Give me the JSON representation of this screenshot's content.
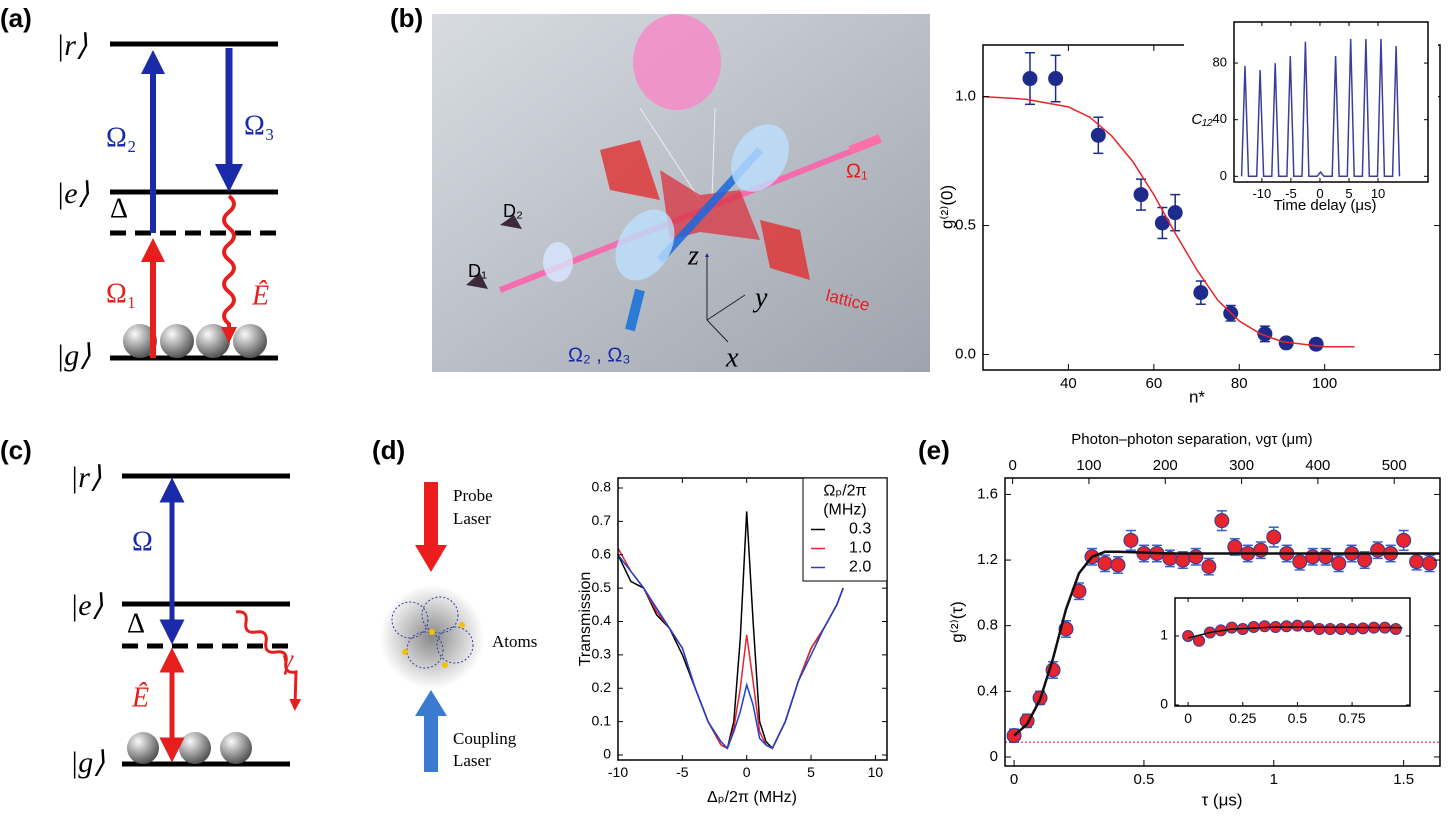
{
  "panels": [
    "(a)",
    "(b)",
    "(c)",
    "(d)",
    "(e)"
  ],
  "diagram_a": {
    "levels": [
      "|r⟩",
      "|e⟩",
      "|g⟩"
    ],
    "detuning": "Δ",
    "fields": [
      "Ω₂",
      "Ω₃",
      "Ω₁",
      "Ê"
    ]
  },
  "illustration_b": {
    "labels": [
      "D₂",
      "D₁",
      "z",
      "y",
      "x",
      "Ω₁",
      "lattice",
      "Ω₂ , Ω₃"
    ]
  },
  "diagram_c": {
    "levels": [
      "|r⟩",
      "|e⟩",
      "|g⟩"
    ],
    "detuning": "Δ",
    "fields": [
      "Ω",
      "Ê",
      "γ"
    ]
  },
  "diagram_d": {
    "probe": [
      "Probe",
      "Laser"
    ],
    "sample": "Atoms",
    "coupling": [
      "Coupling",
      "Laser"
    ]
  },
  "chart_data": [
    {
      "type": "scatter",
      "xlabel": "n*",
      "ylabel": "g⁽²⁾(0)",
      "xlim": [
        20,
        127
      ],
      "ylim": [
        -0.06,
        1.2
      ],
      "xticks": [
        40,
        60,
        80,
        100
      ],
      "yticks": [
        {
          "value": 0,
          "label": "0.0"
        },
        0.5,
        {
          "value": 1,
          "label": "1.0"
        }
      ],
      "series": [
        {
          "mode": "marker",
          "color": "#1f2b8c",
          "x": [
            31,
            37,
            47,
            57,
            62,
            65,
            71,
            78,
            86,
            91,
            98
          ],
          "values": [
            1.07,
            1.07,
            0.85,
            0.62,
            0.51,
            0.55,
            0.24,
            0.16,
            0.08,
            0.045,
            0.04
          ],
          "errors": [
            0.1,
            0.09,
            0.07,
            0.06,
            0.06,
            0.07,
            0.045,
            0.03,
            0.03,
            0.02,
            0.02
          ]
        },
        {
          "mode": "line",
          "color": "#e8242c",
          "x": [
            20,
            30,
            40,
            45,
            50,
            55,
            60,
            65,
            70,
            75,
            80,
            85,
            90,
            95,
            100,
            107
          ],
          "values": [
            1.0,
            0.99,
            0.96,
            0.92,
            0.85,
            0.75,
            0.62,
            0.47,
            0.33,
            0.21,
            0.13,
            0.08,
            0.05,
            0.04,
            0.03,
            0.03
          ]
        }
      ]
    },
    {
      "type": "line",
      "xlabel": "Time delay (μs)",
      "ylabel": "C₁₂",
      "xlim": [
        -14.8,
        18.6
      ],
      "ylim": [
        -4,
        109
      ],
      "xticks": [
        -10,
        -5,
        0,
        5,
        10
      ],
      "yticks": [
        0,
        40,
        80
      ],
      "series": [
        {
          "mode": "line",
          "color": "#3b3f9a",
          "x": [
            -13.5,
            -12.9,
            -12.3,
            -10.9,
            -10.3,
            -9.7,
            -8.3,
            -7.7,
            -7.1,
            -5.7,
            -5.1,
            -4.5,
            -3.1,
            -2.5,
            -1.9,
            -0.5,
            0.1,
            0.7,
            2.1,
            2.7,
            3.3,
            4.7,
            5.3,
            5.9,
            7.3,
            7.9,
            8.5,
            9.9,
            10.5,
            11.1,
            12.5,
            13.1,
            13.7
          ],
          "values": [
            0,
            78,
            0,
            0,
            75,
            0,
            0,
            80,
            0,
            0,
            85,
            0,
            0,
            95,
            0,
            0,
            3,
            0,
            0,
            85,
            0,
            0,
            97,
            0,
            0,
            97,
            0,
            0,
            97,
            0,
            0,
            92,
            0
          ]
        }
      ]
    },
    {
      "type": "line",
      "xlabel": "Δₚ/2π (MHz)",
      "ylabel": "Transmission",
      "xlim": [
        -10,
        10.9
      ],
      "ylim": [
        -0.015,
        0.83
      ],
      "xticks": [
        -10,
        -5,
        0,
        5,
        10
      ],
      "yticks": [
        0,
        0.1,
        0.2,
        0.3,
        0.4,
        0.5,
        0.6,
        0.7,
        0.8
      ],
      "legend": "upper right",
      "legend_title": [
        "Ωₚ/2π",
        "(MHz)"
      ],
      "series": [
        {
          "name": "0.3",
          "mode": "line",
          "color": "#000000",
          "x": [
            -10,
            -9,
            -8,
            -7,
            -6,
            -5,
            -4,
            -3,
            -2,
            -1.5,
            -1,
            -0.5,
            0,
            0.5,
            1,
            1.5,
            2,
            3,
            4,
            5,
            6,
            7,
            7.5
          ],
          "values": [
            0.6,
            0.52,
            0.5,
            0.42,
            0.38,
            0.3,
            0.2,
            0.1,
            0.03,
            0.02,
            0.1,
            0.35,
            0.73,
            0.4,
            0.1,
            0.04,
            0.02,
            0.1,
            0.22,
            0.32,
            0.38,
            0.45,
            0.5
          ]
        },
        {
          "name": "1.0",
          "mode": "line",
          "color": "#e8242c",
          "x": [
            -10,
            -9,
            -8,
            -7,
            -6,
            -5,
            -4,
            -3,
            -2,
            -1.5,
            -1,
            -0.5,
            0,
            0.5,
            1,
            1.5,
            2,
            3,
            4,
            5,
            6,
            7,
            7.5
          ],
          "values": [
            0.62,
            0.55,
            0.5,
            0.43,
            0.38,
            0.32,
            0.2,
            0.1,
            0.03,
            0.02,
            0.08,
            0.2,
            0.36,
            0.22,
            0.07,
            0.03,
            0.02,
            0.1,
            0.22,
            0.32,
            0.38,
            0.45,
            0.5
          ]
        },
        {
          "name": "2.0",
          "mode": "line",
          "color": "#1f3fd0",
          "x": [
            -10,
            -9,
            -8,
            -7,
            -6,
            -5,
            -4,
            -3,
            -2,
            -1.5,
            -1,
            -0.5,
            0,
            0.5,
            1,
            1.5,
            2,
            3,
            4,
            5,
            6,
            7,
            7.5
          ],
          "values": [
            0.6,
            0.55,
            0.5,
            0.44,
            0.38,
            0.32,
            0.2,
            0.1,
            0.04,
            0.02,
            0.07,
            0.13,
            0.21,
            0.15,
            0.05,
            0.03,
            0.02,
            0.1,
            0.22,
            0.3,
            0.38,
            0.45,
            0.5
          ]
        }
      ]
    },
    {
      "type": "scatter",
      "xlabel": "τ (μs)",
      "ylabel": "g⁽²⁾(τ)",
      "x2label": "Photon–photon separation, νgτ (μm)",
      "xlim": [
        -0.035,
        1.64
      ],
      "ylim": [
        -0.055,
        1.7
      ],
      "xticks": [
        0,
        0.5,
        1,
        1.5
      ],
      "yticks": [
        0,
        0.4,
        0.8,
        1.2,
        1.6
      ],
      "x2lim": [
        -10,
        560
      ],
      "x2ticks": [
        0,
        100,
        200,
        300,
        400,
        500
      ],
      "reference_line": 0.09,
      "reference_color": "#e8242c",
      "series": [
        {
          "mode": "marker",
          "color": "#e8242c",
          "edge_color": "#2b3d9c",
          "error_color": "#3a5fc8",
          "x": [
            0,
            0.05,
            0.1,
            0.15,
            0.2,
            0.25,
            0.3,
            0.35,
            0.4,
            0.45,
            0.5,
            0.55,
            0.6,
            0.65,
            0.7,
            0.75,
            0.8,
            0.85,
            0.9,
            0.95,
            1.0,
            1.05,
            1.1,
            1.15,
            1.2,
            1.25,
            1.3,
            1.35,
            1.4,
            1.45,
            1.5,
            1.55,
            1.6
          ],
          "values": [
            0.13,
            0.22,
            0.36,
            0.53,
            0.78,
            1.01,
            1.22,
            1.18,
            1.17,
            1.32,
            1.24,
            1.24,
            1.21,
            1.2,
            1.22,
            1.16,
            1.44,
            1.28,
            1.24,
            1.26,
            1.34,
            1.24,
            1.19,
            1.22,
            1.22,
            1.18,
            1.24,
            1.2,
            1.26,
            1.24,
            1.32,
            1.19,
            1.18
          ],
          "errors": [
            0.04,
            0.04,
            0.04,
            0.05,
            0.05,
            0.05,
            0.05,
            0.05,
            0.05,
            0.06,
            0.05,
            0.05,
            0.05,
            0.05,
            0.05,
            0.05,
            0.06,
            0.05,
            0.05,
            0.05,
            0.06,
            0.05,
            0.05,
            0.05,
            0.05,
            0.05,
            0.05,
            0.05,
            0.05,
            0.05,
            0.06,
            0.05,
            0.05
          ]
        },
        {
          "mode": "line",
          "color": "#111111",
          "x": [
            0,
            0.05,
            0.1,
            0.15,
            0.2,
            0.25,
            0.3,
            0.35,
            0.4,
            0.6,
            1.0,
            1.64
          ],
          "values": [
            0.13,
            0.2,
            0.35,
            0.6,
            0.9,
            1.12,
            1.22,
            1.25,
            1.25,
            1.24,
            1.24,
            1.24
          ]
        }
      ]
    },
    {
      "type": "scatter",
      "xlim": [
        -0.06,
        1.015
      ],
      "ylim": [
        -0.015,
        1.55
      ],
      "xticks": [
        0,
        0.25,
        0.5,
        0.75
      ],
      "yticks": [
        0,
        1
      ],
      "series": [
        {
          "mode": "marker",
          "color": "#e8242c",
          "edge_color": "#2b3d9c",
          "x": [
            0,
            0.05,
            0.1,
            0.15,
            0.2,
            0.25,
            0.3,
            0.35,
            0.4,
            0.45,
            0.5,
            0.55,
            0.6,
            0.65,
            0.7,
            0.75,
            0.8,
            0.85,
            0.9,
            0.95
          ],
          "values": [
            1.0,
            0.93,
            1.05,
            1.08,
            1.12,
            1.1,
            1.13,
            1.14,
            1.13,
            1.14,
            1.15,
            1.14,
            1.1,
            1.1,
            1.1,
            1.1,
            1.11,
            1.12,
            1.12,
            1.1
          ]
        },
        {
          "mode": "line",
          "color": "#111111",
          "x": [
            0,
            0.1,
            0.2,
            0.4,
            0.98
          ],
          "values": [
            0.97,
            1.05,
            1.1,
            1.13,
            1.12
          ]
        }
      ]
    }
  ]
}
